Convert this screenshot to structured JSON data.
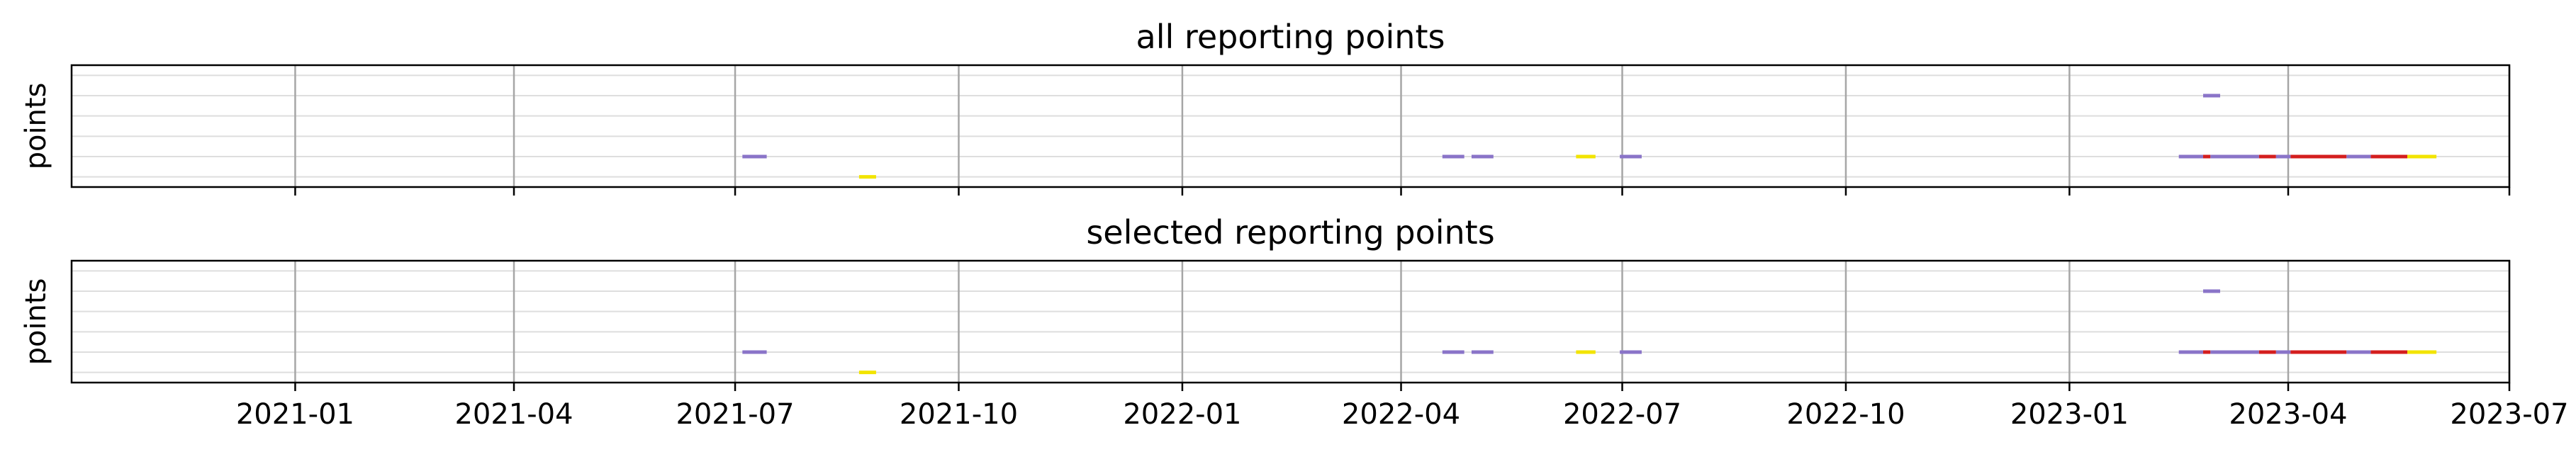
{
  "chart_data": {
    "type": "timeline",
    "xlim": [
      "2020-10-01",
      "2023-07-01"
    ],
    "xticks": [
      "2021-01-01",
      "2021-04-01",
      "2021-07-01",
      "2021-10-01",
      "2022-01-01",
      "2022-04-01",
      "2022-07-01",
      "2022-10-01",
      "2023-01-01",
      "2023-04-01",
      "2023-07-01"
    ],
    "xtick_labels": [
      "2021-01",
      "2021-04",
      "2021-07",
      "2021-10",
      "2022-01",
      "2022-04",
      "2022-07",
      "2022-10",
      "2023-01",
      "2023-04",
      "2023-07"
    ],
    "rows": 6,
    "ylim": [
      -0.5,
      5.5
    ],
    "grid": {
      "x": true,
      "y": true
    },
    "colors": {
      "purple": "#8a74c8",
      "yellow": "#f2e400",
      "red": "#d41e1e",
      "grid_x": "#a6a6a6",
      "grid_y": "#dedede"
    },
    "panels": [
      {
        "title": "all reporting points",
        "ylabel": "points",
        "show_xtick_labels": false,
        "segments": [
          {
            "start": "2021-07-04",
            "end": "2021-07-14",
            "row": 1,
            "color": "purple"
          },
          {
            "start": "2021-08-21",
            "end": "2021-08-28",
            "row": 0,
            "color": "yellow"
          },
          {
            "start": "2022-04-18",
            "end": "2022-04-27",
            "row": 1,
            "color": "purple"
          },
          {
            "start": "2022-04-30",
            "end": "2022-05-09",
            "row": 1,
            "color": "purple"
          },
          {
            "start": "2022-06-12",
            "end": "2022-06-20",
            "row": 1,
            "color": "yellow"
          },
          {
            "start": "2022-06-30",
            "end": "2022-07-09",
            "row": 1,
            "color": "purple"
          },
          {
            "start": "2023-02-25",
            "end": "2023-03-04",
            "row": 4,
            "color": "purple"
          },
          {
            "start": "2023-02-15",
            "end": "2023-02-25",
            "row": 1,
            "color": "purple"
          },
          {
            "start": "2023-02-25",
            "end": "2023-02-28",
            "row": 1,
            "color": "red"
          },
          {
            "start": "2023-02-28",
            "end": "2023-03-20",
            "row": 1,
            "color": "purple"
          },
          {
            "start": "2023-03-20",
            "end": "2023-03-27",
            "row": 1,
            "color": "red"
          },
          {
            "start": "2023-03-27",
            "end": "2023-04-02",
            "row": 1,
            "color": "purple"
          },
          {
            "start": "2023-04-02",
            "end": "2023-04-25",
            "row": 1,
            "color": "red"
          },
          {
            "start": "2023-04-25",
            "end": "2023-05-05",
            "row": 1,
            "color": "purple"
          },
          {
            "start": "2023-05-05",
            "end": "2023-05-20",
            "row": 1,
            "color": "red"
          },
          {
            "start": "2023-05-20",
            "end": "2023-06-01",
            "row": 1,
            "color": "yellow"
          }
        ]
      },
      {
        "title": "selected reporting points",
        "ylabel": "points",
        "show_xtick_labels": true,
        "segments": [
          {
            "start": "2021-07-04",
            "end": "2021-07-14",
            "row": 1,
            "color": "purple"
          },
          {
            "start": "2021-08-21",
            "end": "2021-08-28",
            "row": 0,
            "color": "yellow"
          },
          {
            "start": "2022-04-18",
            "end": "2022-04-27",
            "row": 1,
            "color": "purple"
          },
          {
            "start": "2022-04-30",
            "end": "2022-05-09",
            "row": 1,
            "color": "purple"
          },
          {
            "start": "2022-06-12",
            "end": "2022-06-20",
            "row": 1,
            "color": "yellow"
          },
          {
            "start": "2022-06-30",
            "end": "2022-07-09",
            "row": 1,
            "color": "purple"
          },
          {
            "start": "2023-02-25",
            "end": "2023-03-04",
            "row": 4,
            "color": "purple"
          },
          {
            "start": "2023-02-15",
            "end": "2023-02-25",
            "row": 1,
            "color": "purple"
          },
          {
            "start": "2023-02-25",
            "end": "2023-02-28",
            "row": 1,
            "color": "red"
          },
          {
            "start": "2023-02-28",
            "end": "2023-03-20",
            "row": 1,
            "color": "purple"
          },
          {
            "start": "2023-03-20",
            "end": "2023-03-27",
            "row": 1,
            "color": "red"
          },
          {
            "start": "2023-03-27",
            "end": "2023-04-02",
            "row": 1,
            "color": "purple"
          },
          {
            "start": "2023-04-02",
            "end": "2023-04-25",
            "row": 1,
            "color": "red"
          },
          {
            "start": "2023-04-25",
            "end": "2023-05-05",
            "row": 1,
            "color": "purple"
          },
          {
            "start": "2023-05-05",
            "end": "2023-05-20",
            "row": 1,
            "color": "red"
          },
          {
            "start": "2023-05-20",
            "end": "2023-06-01",
            "row": 1,
            "color": "yellow"
          }
        ]
      }
    ]
  }
}
